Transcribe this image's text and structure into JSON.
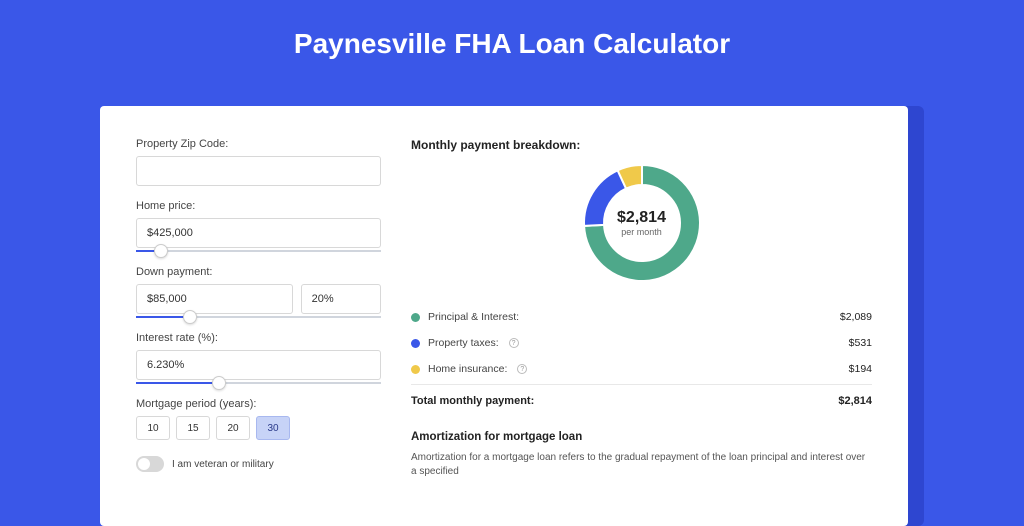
{
  "page": {
    "title": "Paynesville FHA Loan Calculator",
    "background_color": "#3a57e8",
    "shadow_color": "#2e46d0",
    "card_bg": "#ffffff"
  },
  "form": {
    "zip": {
      "label": "Property Zip Code:",
      "value": ""
    },
    "home_price": {
      "label": "Home price:",
      "value": "$425,000",
      "slider_pct": 10
    },
    "down_payment": {
      "label": "Down payment:",
      "value": "$85,000",
      "pct_value": "20%",
      "slider_pct": 22
    },
    "interest_rate": {
      "label": "Interest rate (%):",
      "value": "6.230%",
      "slider_pct": 34
    },
    "mortgage_period": {
      "label": "Mortgage period (years):",
      "options": [
        "10",
        "15",
        "20",
        "30"
      ],
      "selected": "30"
    },
    "veteran": {
      "label": "I am veteran or military",
      "checked": false
    }
  },
  "breakdown": {
    "heading": "Monthly payment breakdown:",
    "donut": {
      "amount": "$2,814",
      "subtitle": "per month",
      "segments": [
        {
          "label": "Principal & Interest",
          "value": 2089,
          "color": "#4ea88a",
          "pct": 74.2
        },
        {
          "label": "Property taxes",
          "value": 531,
          "color": "#3a57e8",
          "pct": 18.9
        },
        {
          "label": "Home insurance",
          "value": 194,
          "color": "#f0c94a",
          "pct": 6.9
        }
      ]
    },
    "rows": [
      {
        "label": "Principal & Interest:",
        "value": "$2,089",
        "color": "#4ea88a",
        "help": false
      },
      {
        "label": "Property taxes:",
        "value": "$531",
        "color": "#3a57e8",
        "help": true
      },
      {
        "label": "Home insurance:",
        "value": "$194",
        "color": "#f0c94a",
        "help": true
      }
    ],
    "total": {
      "label": "Total monthly payment:",
      "value": "$2,814"
    }
  },
  "amortization": {
    "heading": "Amortization for mortgage loan",
    "text": "Amortization for a mortgage loan refers to the gradual repayment of the loan principal and interest over a specified"
  }
}
